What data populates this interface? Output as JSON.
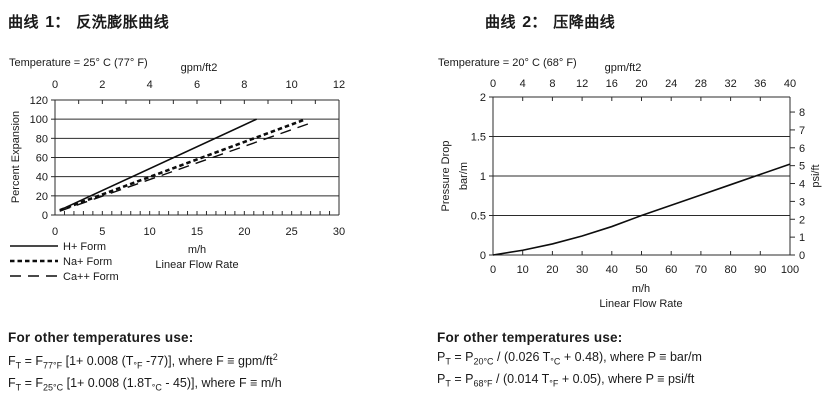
{
  "colors": {
    "ink": "#1a1a1a",
    "line": "#0d0d0d",
    "grid": "#2b2b2b",
    "bg": "#ffffff"
  },
  "left": {
    "title_label": "曲线",
    "title_number": "1：",
    "title_text": "反洗膨胀曲线",
    "notes": {
      "heading": "For other temperatures use:",
      "formulas": [
        [
          {
            "t": "F"
          },
          {
            "sub": "T"
          },
          {
            "t": " = F"
          },
          {
            "sub": "77°F"
          },
          {
            "t": " [1+ 0.008 (T"
          },
          {
            "sub": "°F"
          },
          {
            "t": " -77)], where F ≡ gpm/ft"
          },
          {
            "sup": "2"
          }
        ],
        [
          {
            "t": "F"
          },
          {
            "sub": "T"
          },
          {
            "t": " = F"
          },
          {
            "sub": "25°C"
          },
          {
            "t": " [1+ 0.008 (1.8T"
          },
          {
            "sub": "°C"
          },
          {
            "t": " - 45)], where F ≡ m/h"
          }
        ]
      ]
    }
  },
  "right": {
    "title_label": "曲线",
    "title_number": "2：",
    "title_text": "压降曲线",
    "notes": {
      "heading": "For other temperatures use:",
      "formulas": [
        [
          {
            "t": "P"
          },
          {
            "sub": "T"
          },
          {
            "t": " = P"
          },
          {
            "sub": "20°C"
          },
          {
            "t": " / (0.026 T"
          },
          {
            "sub": "°C"
          },
          {
            "t": " + 0.48), where P ≡ bar/m"
          }
        ],
        [
          {
            "t": "P"
          },
          {
            "sub": "T"
          },
          {
            "t": " = P"
          },
          {
            "sub": "68°F"
          },
          {
            "t": " / (0.014 T"
          },
          {
            "sub": "°F"
          },
          {
            "t": " + 0.05), where P ≡ psi/ft"
          }
        ]
      ]
    }
  },
  "chart_data": [
    {
      "type": "line",
      "title": "曲线 1： 反洗膨胀曲线",
      "temperature": "Temperature = 25° C (77° F)",
      "top_axis": {
        "label": "gpm/ft2",
        "min": 0,
        "max": 12,
        "tick_step": 1,
        "label_step": 2
      },
      "x_axis": {
        "unit": "m/h",
        "label": "Linear Flow Rate",
        "min": 0,
        "max": 30,
        "tick_step": 1,
        "label_step": 5
      },
      "y_axis": {
        "label": "Percent Expansion",
        "min": 0,
        "max": 120,
        "grid_step": 20
      },
      "grid": true,
      "legend_position": "bottom-left",
      "series": [
        {
          "name": "H+ Form",
          "style": "solid",
          "points": [
            [
              0.5,
              5
            ],
            [
              21.3,
              100
            ]
          ]
        },
        {
          "name": "Na+ Form",
          "style": "short-dash",
          "points": [
            [
              0.5,
              5
            ],
            [
              26.5,
              100
            ]
          ]
        },
        {
          "name": "Ca++ Form",
          "style": "long-dash",
          "points": [
            [
              0.5,
              4
            ],
            [
              27.3,
              97
            ]
          ]
        }
      ]
    },
    {
      "type": "line",
      "title": "曲线 2： 压降曲线",
      "temperature": "Temperature = 20° C (68° F)",
      "top_axis": {
        "label": "gpm/ft2",
        "min": 0,
        "max": 40,
        "tick_step": 4,
        "label_step": 4
      },
      "x_axis": {
        "unit": "m/h",
        "label": "Linear Flow Rate",
        "min": 0,
        "max": 100,
        "tick_step": 10,
        "label_step": 10
      },
      "y_axis": {
        "label_line1": "Pressure Drop",
        "label_line2": "bar/m",
        "min": 0,
        "max": 2,
        "grid_step": 0.5
      },
      "right_axis": {
        "label": "psi/ft",
        "min": 0,
        "max": 8,
        "tick_step": 1,
        "bar_to_psi": 4.421
      },
      "grid": true,
      "series": [
        {
          "name": "Pressure Drop",
          "style": "solid",
          "points": [
            [
              0,
              0
            ],
            [
              10,
              0.06
            ],
            [
              20,
              0.14
            ],
            [
              30,
              0.24
            ],
            [
              40,
              0.36
            ],
            [
              50,
              0.5
            ],
            [
              60,
              0.63
            ],
            [
              70,
              0.76
            ],
            [
              80,
              0.89
            ],
            [
              90,
              1.02
            ],
            [
              100,
              1.15
            ]
          ]
        }
      ]
    }
  ]
}
